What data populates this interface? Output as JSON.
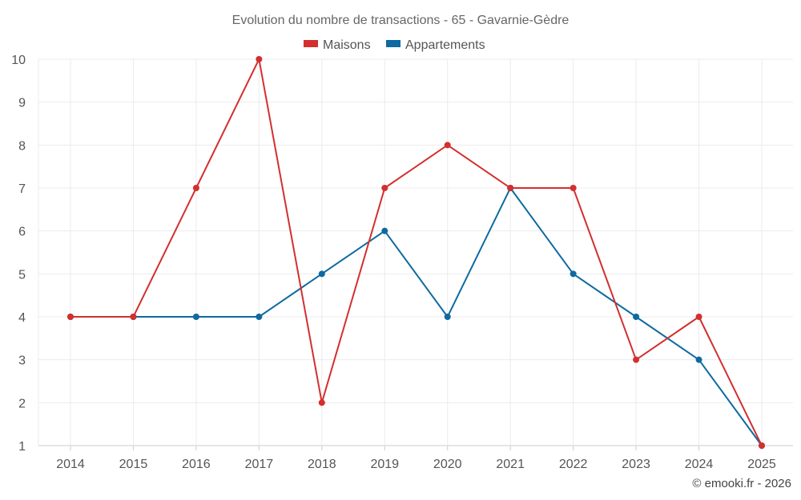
{
  "chart_data": {
    "type": "line",
    "title": "Evolution du nombre de transactions - 65 - Gavarnie-Gèdre",
    "categories": [
      "2014",
      "2015",
      "2016",
      "2017",
      "2018",
      "2019",
      "2020",
      "2021",
      "2022",
      "2023",
      "2024",
      "2025"
    ],
    "series": [
      {
        "name": "Maisons",
        "color": "#d32f2f",
        "values": [
          4,
          4,
          7,
          10,
          2,
          7,
          8,
          7,
          7,
          3,
          4,
          1
        ]
      },
      {
        "name": "Appartements",
        "color": "#0e6aa0",
        "values": [
          4,
          4,
          4,
          4,
          5,
          6,
          4,
          7,
          5,
          4,
          3,
          1
        ]
      }
    ],
    "ylim": [
      1,
      10
    ],
    "yticks": [
      "1",
      "2",
      "3",
      "4",
      "5",
      "6",
      "7",
      "8",
      "9",
      "10"
    ],
    "grid": true,
    "legend": "top-center",
    "xlabel": "",
    "ylabel": ""
  },
  "credit": "© emooki.fr - 2026",
  "colors": {
    "grid": "#ebebeb",
    "axis": "#cccccc"
  }
}
